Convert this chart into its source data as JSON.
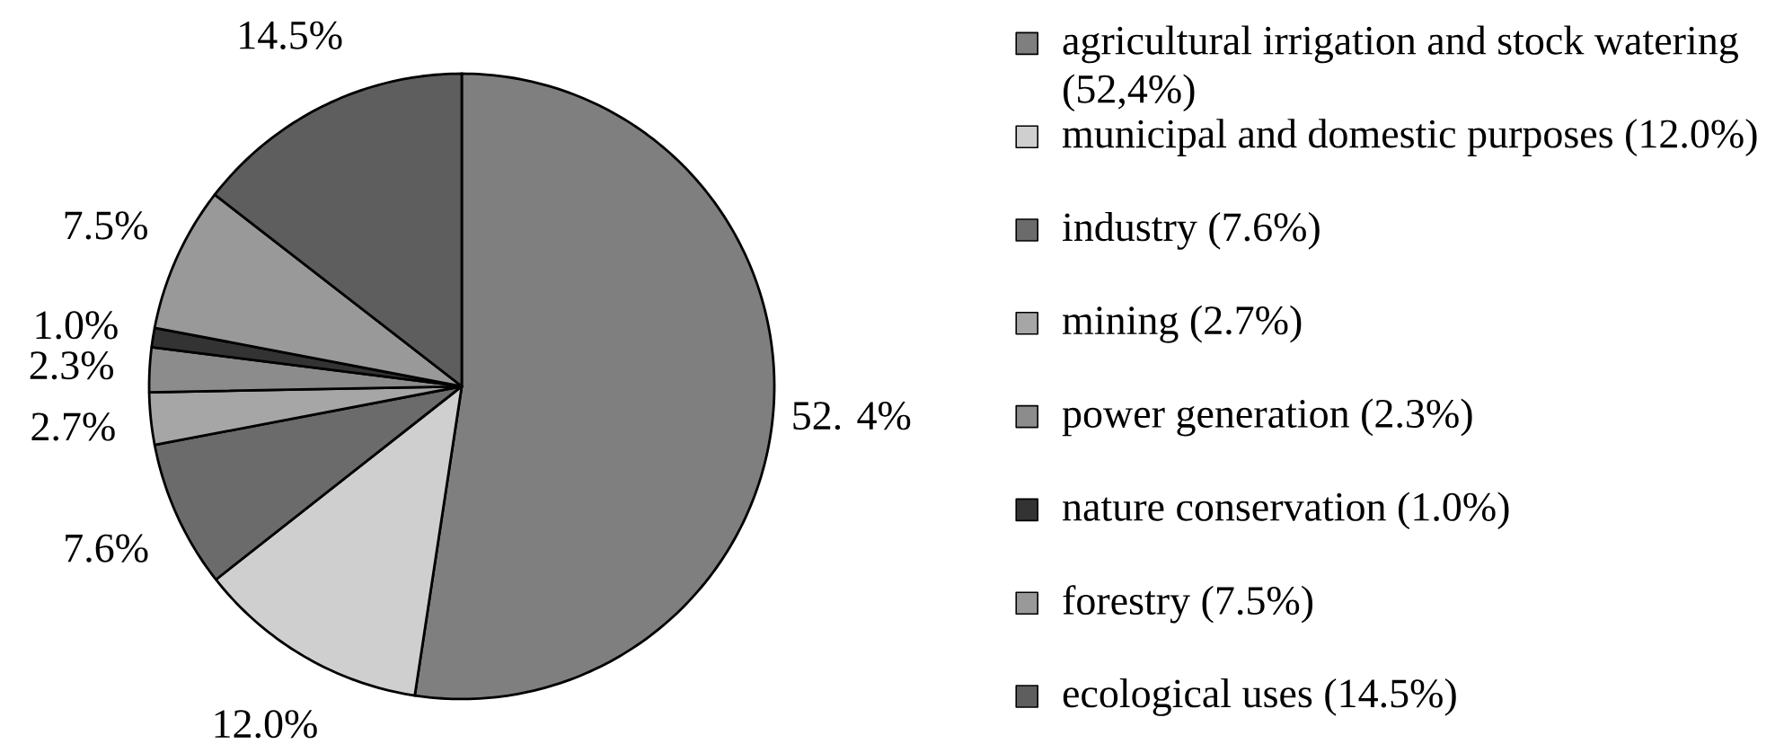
{
  "chart_data": {
    "type": "pie",
    "categories": [
      "agricultural irrigation and stock watering (52,4%)",
      "municipal and domestic purposes (12.0%)",
      "industry (7.6%)",
      "mining (2.7%)",
      "power generation (2.3%)",
      "nature conservation (1.0%)",
      "forestry (7.5%)",
      "ecological uses (14.5%)"
    ],
    "values": [
      52.4,
      12.0,
      7.6,
      2.7,
      2.3,
      1.0,
      7.5,
      14.5
    ],
    "colors": [
      "#7f7f7f",
      "#cfcfcf",
      "#6b6b6b",
      "#a6a6a6",
      "#8c8c8c",
      "#333333",
      "#999999",
      "#5e5e5e"
    ],
    "value_labels": [
      "52. 4%",
      "12.0%",
      "7.6%",
      "2.7%",
      "2.3%",
      "1.0%",
      "7.5%",
      "14.5%"
    ],
    "legend": "right"
  }
}
